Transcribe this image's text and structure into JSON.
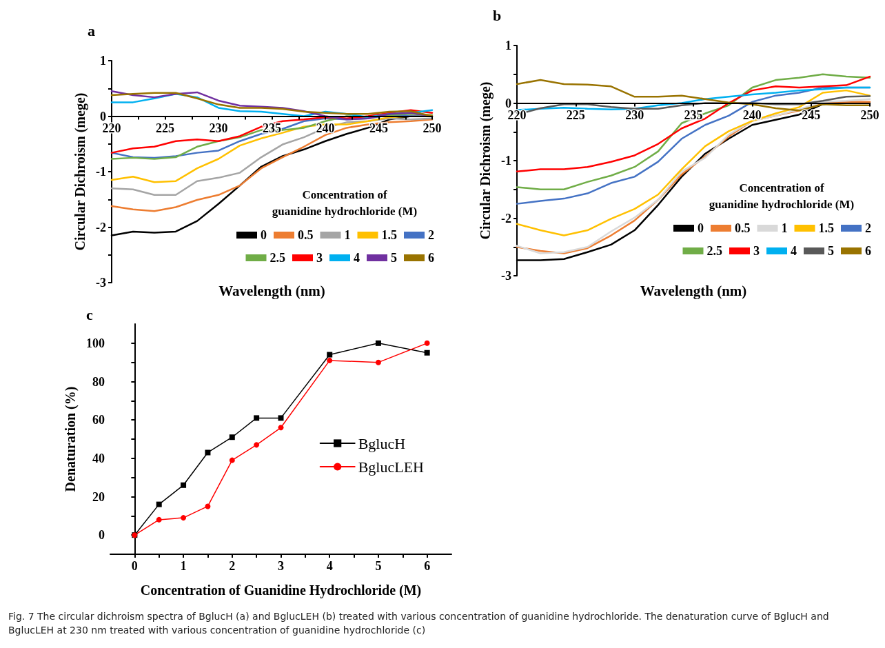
{
  "chart_data": [
    {
      "type": "line",
      "title": "a",
      "xlabel": "Wavelength (nm)",
      "ylabel": "Circular Dichroism (mege)",
      "legend_title": "Concentration of\nguanidine hydrochloride (M)",
      "legend": "bottom right",
      "marker": "none",
      "x": [
        220,
        222,
        224,
        226,
        228,
        230,
        232,
        234,
        236,
        238,
        240,
        242,
        244,
        246,
        248,
        250
      ],
      "xlim": [
        220,
        250
      ],
      "xticks": [
        220,
        {
          "value": 222.5,
          "label": null
        },
        225,
        {
          "value": 227.5,
          "label": null
        },
        230,
        {
          "value": 232.5,
          "label": null
        },
        235,
        {
          "value": 237.5,
          "label": null
        },
        240,
        {
          "value": 242.5,
          "label": null
        },
        245,
        {
          "value": 247.5,
          "label": null
        },
        250
      ],
      "ylim": [
        -3,
        1
      ],
      "yticks": [
        -3,
        {
          "value": -2.5,
          "label": null
        },
        -2,
        {
          "value": -1.5,
          "label": null
        },
        -1,
        {
          "value": -0.5,
          "label": null
        },
        0,
        {
          "value": 0.5,
          "label": null
        },
        1
      ],
      "series": [
        {
          "name": "0",
          "color": "#000000",
          "values": [
            -2.15,
            -2.08,
            -2.1,
            -2.08,
            -1.89,
            -1.58,
            -1.25,
            -0.91,
            -0.72,
            -0.6,
            -0.45,
            -0.32,
            -0.21,
            -0.06,
            0,
            0
          ]
        },
        {
          "name": "0.5",
          "color": "#ed7d31",
          "values": [
            -1.62,
            -1.68,
            -1.71,
            -1.64,
            -1.51,
            -1.42,
            -1.25,
            -0.94,
            -0.74,
            -0.55,
            -0.34,
            -0.21,
            -0.15,
            -0.11,
            -0.09,
            -0.06
          ]
        },
        {
          "name": "1",
          "color": "#a5a5a5",
          "values": [
            -1.3,
            -1.32,
            -1.42,
            -1.42,
            -1.17,
            -1.11,
            -1.02,
            -0.74,
            -0.51,
            -0.38,
            -0.21,
            -0.11,
            -0.09,
            -0.04,
            -0.06,
            -0.04
          ]
        },
        {
          "name": "1.5",
          "color": "#ffc000",
          "values": [
            -1.15,
            -1.09,
            -1.19,
            -1.17,
            -0.94,
            -0.77,
            -0.53,
            -0.4,
            -0.3,
            -0.19,
            -0.15,
            -0.15,
            -0.09,
            -0.02,
            0,
            0
          ]
        },
        {
          "name": "2",
          "color": "#4472c4",
          "values": [
            -0.66,
            -0.74,
            -0.75,
            -0.72,
            -0.66,
            -0.62,
            -0.45,
            -0.32,
            -0.23,
            -0.09,
            -0.04,
            -0.06,
            -0.04,
            0.02,
            0,
            0
          ]
        },
        {
          "name": "2.5",
          "color": "#70ad47",
          "values": [
            -0.77,
            -0.75,
            -0.77,
            -0.74,
            -0.55,
            -0.45,
            -0.38,
            -0.25,
            -0.25,
            -0.21,
            -0.09,
            0,
            -0.02,
            0.02,
            0.04,
            0.02
          ]
        },
        {
          "name": "3",
          "color": "#ff0000",
          "values": [
            -0.66,
            -0.58,
            -0.55,
            -0.45,
            -0.42,
            -0.45,
            -0.36,
            -0.19,
            -0.09,
            -0.06,
            -0.02,
            -0.04,
            0,
            0.06,
            0.11,
            0.06
          ]
        },
        {
          "name": "4",
          "color": "#00b0f0",
          "values": [
            0.25,
            0.25,
            0.32,
            0.4,
            0.34,
            0.15,
            0.09,
            0.08,
            0.04,
            0,
            0.08,
            0.04,
            -0.02,
            0.04,
            0.06,
            0.11
          ]
        },
        {
          "name": "5",
          "color": "#7030a0",
          "values": [
            0.45,
            0.38,
            0.34,
            0.4,
            0.43,
            0.28,
            0.19,
            0.17,
            0.15,
            0.09,
            0,
            -0.06,
            -0.04,
            0.04,
            0.06,
            0
          ]
        },
        {
          "name": "6",
          "color": "#997300",
          "values": [
            0.38,
            0.4,
            0.42,
            0.42,
            0.32,
            0.21,
            0.15,
            0.15,
            0.13,
            0.08,
            0.06,
            0.04,
            0.04,
            0.08,
            0.09,
            0
          ]
        }
      ]
    },
    {
      "type": "line",
      "title": "b",
      "xlabel": "Wavelength (nm)",
      "ylabel": "Circular Dichroism (mege)",
      "legend_title": "Concentration of\nguanidine hydrochloride (M)",
      "legend": "bottom right",
      "marker": "none",
      "x": [
        220,
        222,
        224,
        226,
        228,
        230,
        232,
        234,
        236,
        238,
        240,
        242,
        244,
        246,
        248,
        250
      ],
      "xlim": [
        220,
        250
      ],
      "xticks": [
        220,
        225,
        230,
        235,
        240,
        245,
        250
      ],
      "ylim": [
        -3,
        1
      ],
      "yticks": [
        -3,
        {
          "value": -2.5,
          "label": null
        },
        -2,
        {
          "value": -1.5,
          "label": null
        },
        -1,
        {
          "value": -0.5,
          "label": null
        },
        0,
        {
          "value": 0.5,
          "label": null
        },
        1
      ],
      "series": [
        {
          "name": "0",
          "color": "#000000",
          "values": [
            -2.73,
            -2.73,
            -2.71,
            -2.59,
            -2.46,
            -2.21,
            -1.77,
            -1.28,
            -0.88,
            -0.62,
            -0.38,
            -0.29,
            -0.2,
            -0.02,
            0.02,
            0
          ]
        },
        {
          "name": "0.5",
          "color": "#ed7d31",
          "values": [
            -2.5,
            -2.57,
            -2.61,
            -2.52,
            -2.3,
            -2.04,
            -1.68,
            -1.24,
            -0.93,
            -0.58,
            -0.31,
            -0.22,
            -0.13,
            0,
            0.02,
            0.02
          ]
        },
        {
          "name": "1",
          "color": "#d9d9d9",
          "values": [
            -2.48,
            -2.61,
            -2.59,
            -2.5,
            -2.23,
            -1.99,
            -1.68,
            -1.19,
            -0.95,
            -0.55,
            -0.31,
            -0.22,
            -0.11,
            0.02,
            0.04,
            0.07
          ]
        },
        {
          "name": "1.5",
          "color": "#ffc000",
          "values": [
            -2.1,
            -2.21,
            -2.3,
            -2.21,
            -2.01,
            -1.84,
            -1.59,
            -1.15,
            -0.75,
            -0.49,
            -0.31,
            -0.18,
            -0.07,
            0.18,
            0.22,
            0.13
          ]
        },
        {
          "name": "2",
          "color": "#4472c4",
          "values": [
            -1.75,
            -1.7,
            -1.66,
            -1.57,
            -1.39,
            -1.28,
            -1.02,
            -0.62,
            -0.38,
            -0.22,
            0.02,
            0.13,
            0.18,
            0.27,
            0.27,
            0.27
          ]
        },
        {
          "name": "2.5",
          "color": "#70ad47",
          "values": [
            -1.46,
            -1.5,
            -1.5,
            -1.37,
            -1.26,
            -1.11,
            -0.84,
            -0.35,
            -0.18,
            -0.04,
            0.27,
            0.4,
            0.44,
            0.5,
            0.46,
            0.44
          ]
        },
        {
          "name": "3",
          "color": "#ff0000",
          "values": [
            -1.19,
            -1.15,
            -1.15,
            -1.11,
            -1.02,
            -0.91,
            -0.71,
            -0.44,
            -0.27,
            0,
            0.22,
            0.29,
            0.27,
            0.29,
            0.31,
            0.46
          ]
        },
        {
          "name": "4",
          "color": "#00b0f0",
          "values": [
            -0.12,
            -0.1,
            -0.08,
            -0.1,
            -0.11,
            -0.1,
            -0.04,
            0,
            0.07,
            0.11,
            0.15,
            0.18,
            0.22,
            0.24,
            0.27,
            0.27
          ]
        },
        {
          "name": "5",
          "color": "#595959",
          "values": [
            -0.2,
            -0.09,
            -0.02,
            -0.02,
            -0.07,
            -0.1,
            -0.1,
            -0.04,
            0,
            0,
            0,
            -0.02,
            -0.02,
            0.04,
            0.11,
            0.12
          ]
        },
        {
          "name": "6",
          "color": "#997300",
          "values": [
            0.33,
            0.4,
            0.33,
            0.32,
            0.29,
            0.11,
            0.11,
            0.13,
            0.07,
            0.01,
            -0.02,
            -0.09,
            -0.13,
            -0.02,
            -0.04,
            -0.04
          ]
        }
      ]
    },
    {
      "type": "line",
      "title": "c",
      "xlabel": "Concentration of Guanidine Hydrochloride (M)",
      "ylabel": "Denaturation (%)",
      "legend": "right",
      "x": [
        0,
        0.5,
        1,
        1.5,
        2,
        2.5,
        3,
        4,
        5,
        6
      ],
      "xlim": [
        -0.5,
        6.5
      ],
      "xticks": [
        0,
        {
          "value": 0.5,
          "label": null
        },
        1,
        {
          "value": 1.5,
          "label": null
        },
        2,
        {
          "value": 2.5,
          "label": null
        },
        3,
        {
          "value": 3.5,
          "label": null
        },
        4,
        {
          "value": 4.5,
          "label": null
        },
        5,
        {
          "value": 5.5,
          "label": null
        },
        6
      ],
      "ylim": [
        -10,
        110
      ],
      "yticks": [
        0,
        {
          "value": 10,
          "label": null
        },
        20,
        {
          "value": 30,
          "label": null
        },
        40,
        {
          "value": 50,
          "label": null
        },
        60,
        {
          "value": 70,
          "label": null
        },
        80,
        {
          "value": 90,
          "label": null
        },
        100
      ],
      "series": [
        {
          "name": "BglucH",
          "color": "#000000",
          "marker": "square",
          "values": [
            0,
            16,
            26,
            43,
            51,
            61,
            61,
            94,
            100,
            95
          ]
        },
        {
          "name": "BglucLEH",
          "color": "#ff0000",
          "marker": "circle",
          "values": [
            0,
            8,
            9,
            15,
            39,
            47,
            56,
            91,
            90,
            100
          ]
        }
      ],
      "annotations": [
        "Fig. 7 The circular dichroism spectra of BglucH (a) and BglucLEH (b) treated with various concentration of guanidine hydrochloride. The denaturation curve of BglucH and BglucLEH at 230 nm treated with various concentration of guanidine hydrochloride (c)"
      ]
    }
  ]
}
